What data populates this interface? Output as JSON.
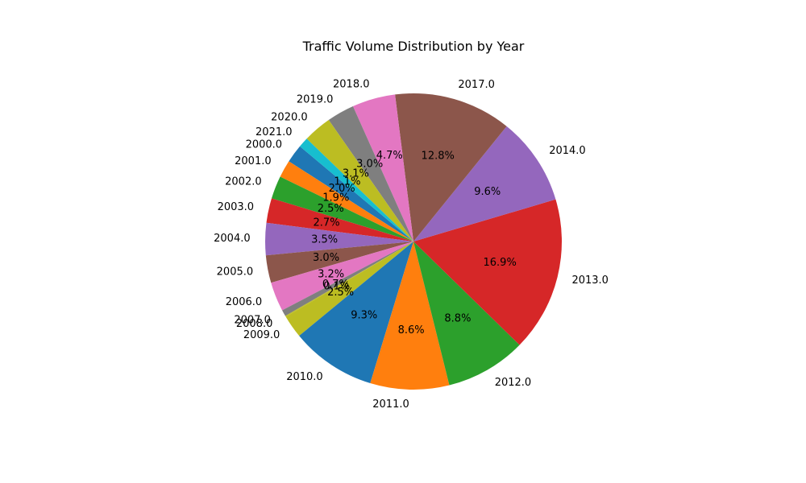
{
  "chart_data": {
    "type": "pie",
    "title": "Traffic Volume Distribution by Year",
    "categories": [
      "2000.0",
      "2001.0",
      "2002.0",
      "2003.0",
      "2004.0",
      "2005.0",
      "2006.0",
      "2007.0",
      "2008.0",
      "2009.0",
      "2010.0",
      "2011.0",
      "2012.0",
      "2013.0",
      "2014.0",
      "2017.0",
      "2018.0",
      "2019.0",
      "2020.0",
      "2021.0"
    ],
    "values": [
      2.0,
      1.9,
      2.5,
      2.7,
      3.5,
      3.0,
      3.2,
      0.7,
      0.1,
      2.5,
      9.3,
      8.6,
      8.8,
      16.9,
      9.6,
      12.8,
      4.7,
      3.0,
      3.1,
      1.1
    ],
    "value_labels": [
      "2.0%",
      "1.9%",
      "2.5%",
      "2.7%",
      "3.5%",
      "3.0%",
      "3.2%",
      "0.7%",
      "0.1%",
      "2.5%",
      "9.3%",
      "8.6%",
      "8.8%",
      "16.9%",
      "9.6%",
      "12.8%",
      "4.7%",
      "3.0%",
      "3.1%",
      "1.1%"
    ],
    "colors": [
      "#1f77b4",
      "#ff7f0e",
      "#2ca02c",
      "#d62728",
      "#9467bd",
      "#8c564b",
      "#e377c2",
      "#7f7f7f",
      "#bcbd22",
      "#bcbd22",
      "#1f77b4",
      "#ff7f0e",
      "#2ca02c",
      "#d62728",
      "#9467bd",
      "#8c564b",
      "#e377c2",
      "#7f7f7f",
      "#bcbd22",
      "#17becf"
    ],
    "start_angle_deg": 140,
    "direction": "counterclockwise",
    "legend": "none"
  }
}
